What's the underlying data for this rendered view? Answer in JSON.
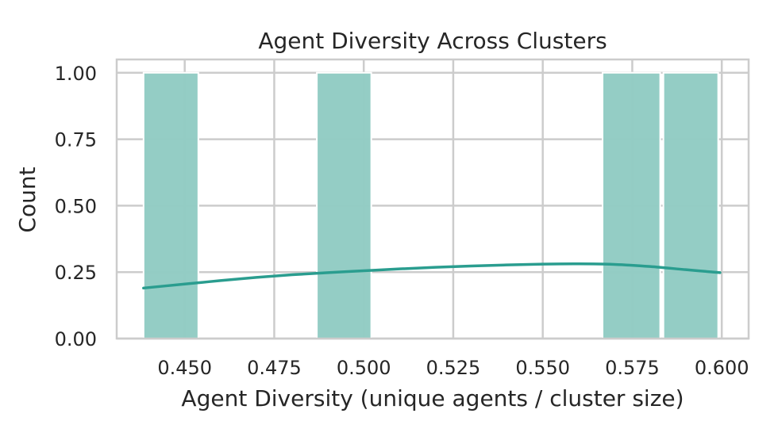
{
  "chart_data": {
    "type": "bar",
    "title": "Agent Diversity Across Clusters",
    "xlabel": "Agent Diversity (unique agents / cluster size)",
    "ylabel": "Count",
    "xlim": [
      0.431,
      0.6075
    ],
    "ylim": [
      0,
      1.05
    ],
    "xticks": [
      "0.450",
      "0.475",
      "0.500",
      "0.525",
      "0.550",
      "0.575",
      "0.600"
    ],
    "yticks": [
      "0.00",
      "0.25",
      "0.50",
      "0.75",
      "1.00"
    ],
    "bins": [
      {
        "x0": 0.4385,
        "x1": 0.4538,
        "count": 1
      },
      {
        "x0": 0.4869,
        "x1": 0.5021,
        "count": 1
      },
      {
        "x0": 0.5667,
        "x1": 0.5828,
        "count": 1
      },
      {
        "x0": 0.5837,
        "x1": 0.599,
        "count": 1
      }
    ],
    "kde": {
      "x": [
        0.4385,
        0.45,
        0.46,
        0.47,
        0.48,
        0.49,
        0.5,
        0.51,
        0.52,
        0.53,
        0.54,
        0.55,
        0.56,
        0.57,
        0.58,
        0.59,
        0.5995
      ],
      "y": [
        0.19,
        0.205,
        0.218,
        0.23,
        0.24,
        0.248,
        0.255,
        0.262,
        0.268,
        0.273,
        0.277,
        0.28,
        0.281,
        0.279,
        0.271,
        0.259,
        0.248
      ]
    },
    "grid": true,
    "legend": "none",
    "colors": {
      "bar_fill": "#92ccc4",
      "bar_edge": "#ffffff",
      "kde_line": "#2a9d8f",
      "grid": "#cccccc",
      "axis_frame": "#cccccc",
      "text": "#262626"
    }
  }
}
